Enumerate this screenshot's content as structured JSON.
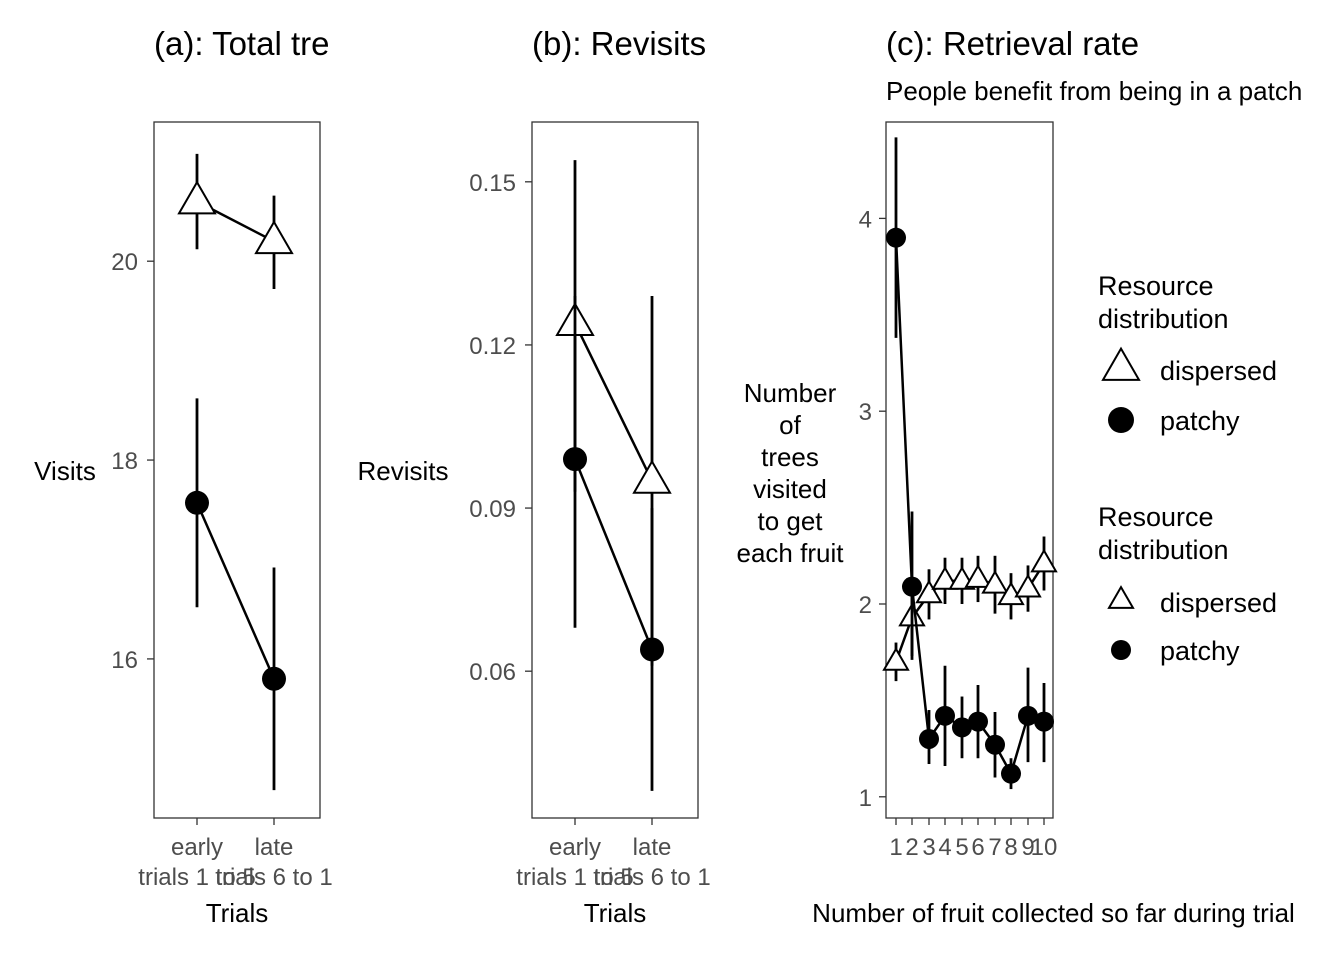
{
  "legend": {
    "groups": [
      {
        "title_lines": [
          "Resource",
          "distribution"
        ],
        "size": "large",
        "entries": [
          {
            "label": "dispersed",
            "shape": "triangle"
          },
          {
            "label": "patchy",
            "shape": "circle"
          }
        ]
      },
      {
        "title_lines": [
          "Resource",
          "distribution"
        ],
        "size": "small",
        "entries": [
          {
            "label": "dispersed",
            "shape": "triangle"
          },
          {
            "label": "patchy",
            "shape": "circle"
          }
        ]
      }
    ]
  },
  "chart_data": [
    {
      "id": "a",
      "type": "line",
      "title": "(a): Total tre",
      "subtitle": "",
      "xlabel": "Trials",
      "ylabel_lines": [
        "Visits"
      ],
      "categories": [
        {
          "lines": [
            "early",
            "trials 1 to 5"
          ]
        },
        {
          "lines": [
            "late",
            "trials 6 to 1"
          ]
        }
      ],
      "ylim": [
        14.4,
        21.4
      ],
      "yticks": [
        16,
        18,
        20
      ],
      "series": [
        {
          "name": "dispersed",
          "shape": "triangle",
          "values": [
            20.6,
            20.2
          ],
          "lower": [
            20.12,
            19.72
          ],
          "upper": [
            21.08,
            20.66
          ]
        },
        {
          "name": "patchy",
          "shape": "circle",
          "values": [
            17.57,
            15.8
          ],
          "lower": [
            16.52,
            14.68
          ],
          "upper": [
            18.62,
            16.92
          ]
        }
      ]
    },
    {
      "id": "b",
      "type": "line",
      "title": "(b): Revisits",
      "subtitle": "",
      "xlabel": "Trials",
      "ylabel_lines": [
        "Revisits"
      ],
      "categories": [
        {
          "lines": [
            "early",
            "trials 1 to 5"
          ]
        },
        {
          "lines": [
            "late",
            "trials 6 to 1"
          ]
        }
      ],
      "ylim": [
        0.033,
        0.161
      ],
      "yticks": [
        0.06,
        0.09,
        0.12,
        0.15
      ],
      "series": [
        {
          "name": "dispersed",
          "shape": "triangle",
          "values": [
            0.124,
            0.095
          ],
          "lower": [
            0.093,
            0.061
          ],
          "upper": [
            0.129,
            0.129
          ]
        },
        {
          "name": "patchy",
          "shape": "circle",
          "values": [
            0.099,
            0.064
          ],
          "lower": [
            0.068,
            0.038
          ],
          "upper": [
            0.154,
            0.09
          ]
        }
      ]
    },
    {
      "id": "c",
      "type": "line",
      "title": "(c): Retrieval rate",
      "subtitle": "People benefit from being in a patch",
      "xlabel": "Number of fruit collected so far during trial",
      "ylabel_lines": [
        "Number",
        "of",
        "trees",
        "visited",
        "to get",
        "each fruit"
      ],
      "categories": [
        {
          "lines": [
            "1"
          ]
        },
        {
          "lines": [
            "2"
          ]
        },
        {
          "lines": [
            "3"
          ]
        },
        {
          "lines": [
            "4"
          ]
        },
        {
          "lines": [
            "5"
          ]
        },
        {
          "lines": [
            "6"
          ]
        },
        {
          "lines": [
            "7"
          ]
        },
        {
          "lines": [
            "8"
          ]
        },
        {
          "lines": [
            "9"
          ]
        },
        {
          "lines": [
            "10"
          ]
        }
      ],
      "ylim": [
        0.89,
        4.5
      ],
      "yticks": [
        1,
        2,
        3,
        4
      ],
      "series": [
        {
          "name": "dispersed",
          "shape": "triangle",
          "values": [
            1.7,
            1.93,
            2.05,
            2.12,
            2.12,
            2.13,
            2.1,
            2.04,
            2.08,
            2.21
          ],
          "lower": [
            1.6,
            1.73,
            1.92,
            2.0,
            2.0,
            2.01,
            1.95,
            1.92,
            1.96,
            2.07
          ],
          "upper": [
            1.8,
            2.13,
            2.18,
            2.24,
            2.24,
            2.25,
            2.25,
            2.16,
            2.2,
            2.35
          ]
        },
        {
          "name": "patchy",
          "shape": "circle",
          "values": [
            3.9,
            2.09,
            1.3,
            1.42,
            1.36,
            1.39,
            1.27,
            1.12,
            1.42,
            1.39
          ],
          "lower": [
            3.38,
            1.71,
            1.17,
            1.16,
            1.2,
            1.2,
            1.1,
            1.04,
            1.18,
            1.18
          ],
          "upper": [
            4.42,
            2.48,
            1.45,
            1.68,
            1.52,
            1.58,
            1.44,
            1.2,
            1.67,
            1.59
          ]
        }
      ]
    }
  ]
}
